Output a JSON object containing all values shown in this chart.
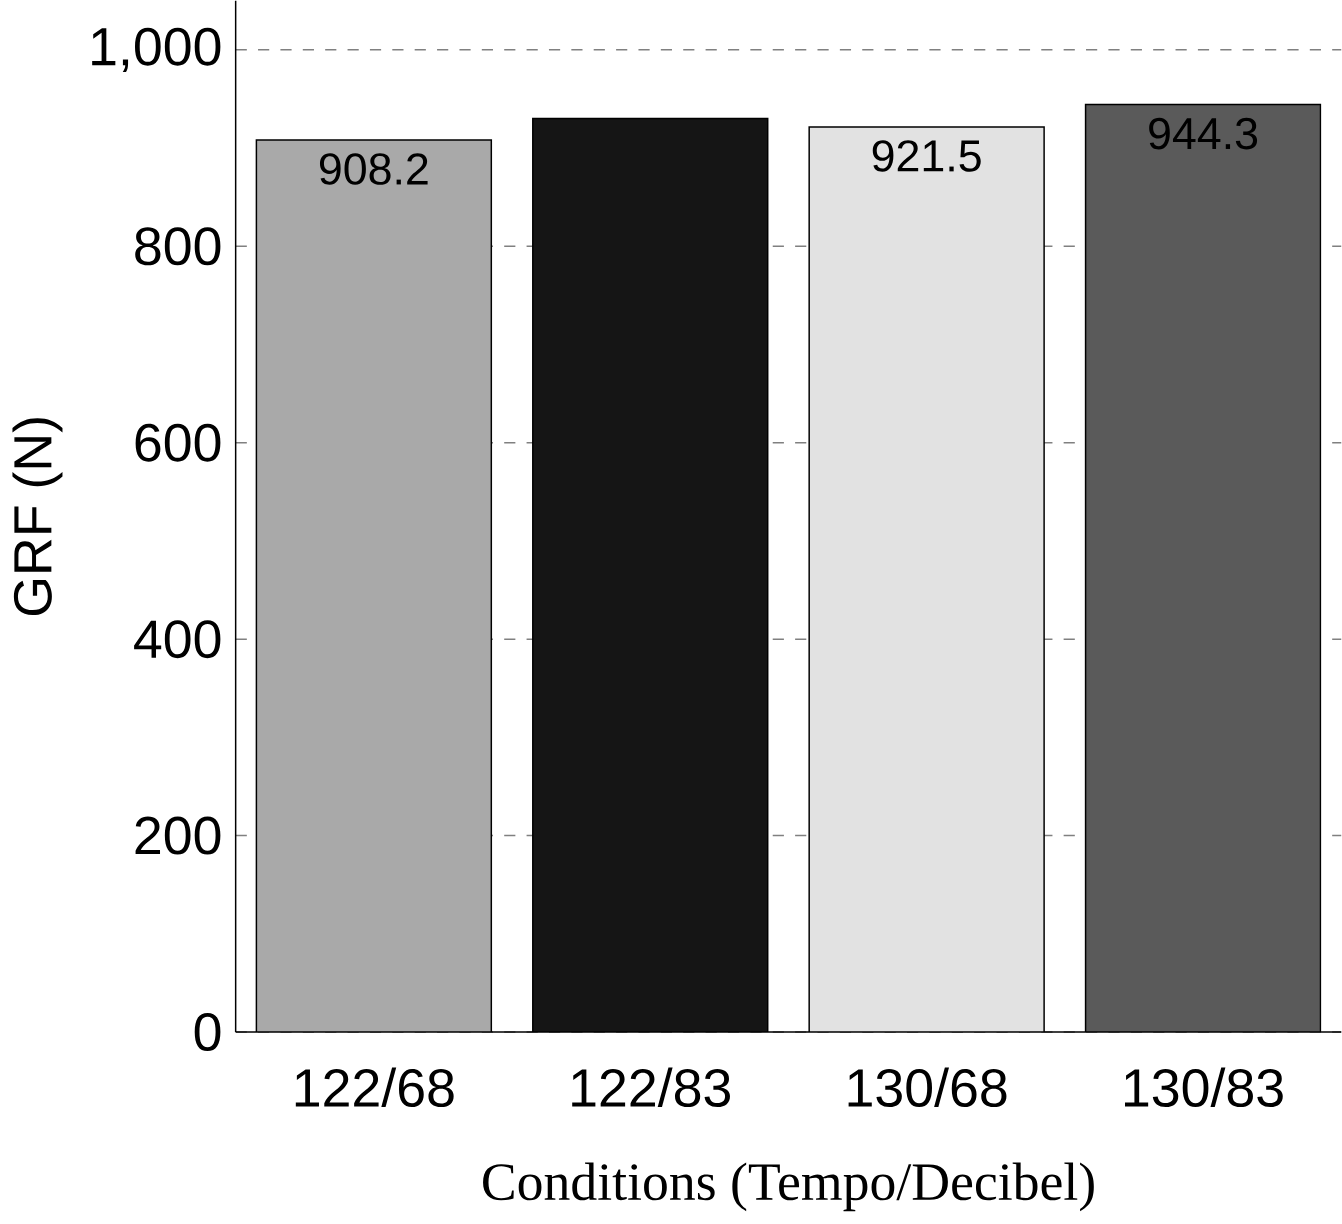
{
  "chart_data": {
    "type": "bar",
    "xlabel": "Conditions (Tempo/Decibel)",
    "ylabel": "GRF (N)",
    "categories": [
      "122/68",
      "122/83",
      "130/68",
      "130/83"
    ],
    "values": [
      908.2,
      930,
      921.5,
      944.3
    ],
    "value_labels": [
      "908.2",
      null,
      "921.5",
      "944.3"
    ],
    "colors": [
      "#a9a9a9",
      "#151515",
      "#e2e2e2",
      "#5a5a5a"
    ],
    "ylim": [
      0,
      1050
    ],
    "yticks": [
      0,
      200,
      400,
      600,
      800,
      {
        "value": 1000,
        "label": "1,000"
      }
    ],
    "grid": "y"
  }
}
